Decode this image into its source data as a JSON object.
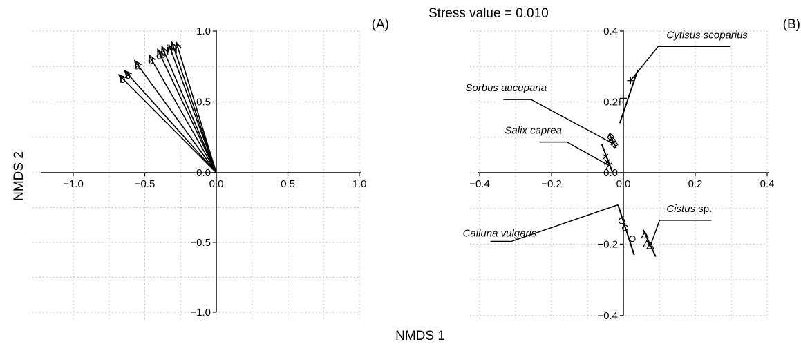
{
  "figure": {
    "stress_text": "Stress value = 0.010",
    "xlabel": "NMDS 1",
    "ylabel": "NMDS 2"
  },
  "chart_data": [
    {
      "type": "scatter",
      "panel_label": "(A)",
      "xlim": [
        -1.25,
        1.0
      ],
      "ylim": [
        -1.05,
        1.0
      ],
      "xticks": [
        "−1.0",
        "−0.5",
        "0.0",
        "0.5",
        "1.0"
      ],
      "yticks": [
        "−1.0",
        "−0.5",
        "0.0",
        "0.5",
        "1.0"
      ],
      "xtick_values": [
        -1.0,
        -0.5,
        0.0,
        0.5,
        1.0
      ],
      "ytick_values": [
        -1.0,
        -0.5,
        0.0,
        0.5,
        1.0
      ],
      "grid": true,
      "vectors": [
        {
          "label": "b",
          "x": -0.68,
          "y": 0.69
        },
        {
          "label": "e",
          "x": -0.64,
          "y": 0.72
        },
        {
          "label": "a",
          "x": -0.57,
          "y": 0.79
        },
        {
          "label": "d",
          "x": -0.47,
          "y": 0.83
        },
        {
          "label": "c",
          "x": -0.41,
          "y": 0.87
        },
        {
          "label": "g",
          "x": -0.38,
          "y": 0.89
        },
        {
          "label": "h",
          "x": -0.33,
          "y": 0.9
        },
        {
          "label": "i+j",
          "x": -0.31,
          "y": 0.92
        },
        {
          "label": "",
          "x": -0.28,
          "y": 0.92
        }
      ]
    },
    {
      "type": "scatter",
      "panel_label": "(B)",
      "xlim": [
        -0.43,
        0.4
      ],
      "ylim": [
        -0.41,
        0.4
      ],
      "xticks": [
        "−0.4",
        "−0.2",
        "0.0",
        "0.2",
        "0.4"
      ],
      "yticks": [
        "−0.4",
        "−0.2",
        "0.0",
        "0.2",
        "0.4"
      ],
      "xtick_values": [
        -0.4,
        -0.2,
        0.0,
        0.2,
        0.4
      ],
      "ytick_values": [
        -0.4,
        -0.2,
        0.0,
        0.2,
        0.4
      ],
      "grid": true,
      "series": [
        {
          "name": "Cytisus scoparius",
          "suffix": "",
          "marker": "plus",
          "points": [
            [
              -0.01,
              0.2
            ],
            [
              0.0,
              0.21
            ],
            [
              0.02,
              0.26
            ]
          ],
          "fit_line": [
            [
              -0.01,
              0.14
            ],
            [
              0.04,
              0.29
            ]
          ],
          "label_pos": [
            0.12,
            0.38
          ]
        },
        {
          "name": "Sorbus aucuparia",
          "suffix": "",
          "marker": "diamond",
          "points": [
            [
              -0.035,
              0.1
            ],
            [
              -0.03,
              0.09
            ],
            [
              -0.025,
              0.08
            ]
          ],
          "fit_line": [
            [
              -0.04,
              0.11
            ],
            [
              -0.02,
              0.07
            ]
          ],
          "label_pos": [
            -0.43,
            0.23
          ]
        },
        {
          "name": "Salix caprea",
          "suffix": "",
          "marker": "cross",
          "points": [
            [
              -0.05,
              0.045
            ],
            [
              -0.045,
              0.03
            ],
            [
              -0.04,
              0.02
            ]
          ],
          "fit_line": [
            [
              -0.06,
              0.08
            ],
            [
              -0.03,
              0.0
            ]
          ],
          "label_pos": [
            -0.33,
            0.11
          ]
        },
        {
          "name": "Calluna vulgaris",
          "suffix": "",
          "marker": "circle",
          "points": [
            [
              -0.005,
              -0.135
            ],
            [
              0.005,
              -0.155
            ],
            [
              0.025,
              -0.185
            ]
          ],
          "fit_line": [
            [
              -0.015,
              -0.09
            ],
            [
              0.03,
              -0.23
            ]
          ],
          "label_pos": [
            -0.37,
            -0.15
          ]
        },
        {
          "name": "Cistus",
          "suffix": " sp.",
          "marker": "triangle",
          "points": [
            [
              0.06,
              -0.175
            ],
            [
              0.065,
              -0.2
            ],
            [
              0.075,
              -0.205
            ]
          ],
          "fit_line": [
            [
              0.055,
              -0.16
            ],
            [
              0.09,
              -0.235
            ]
          ],
          "label_pos": [
            0.12,
            -0.11
          ]
        }
      ]
    }
  ]
}
